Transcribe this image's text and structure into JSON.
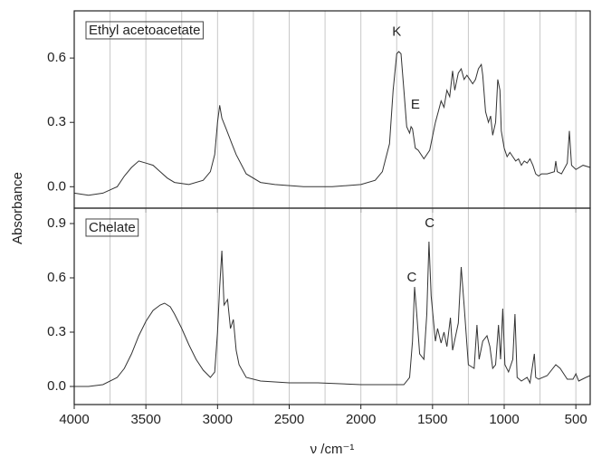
{
  "chart_data": [
    {
      "type": "line",
      "ylabel": "Absorbance",
      "x": [
        4000,
        3900,
        3800,
        3700,
        3650,
        3600,
        3550,
        3500,
        3450,
        3400,
        3350,
        3300,
        3200,
        3100,
        3050,
        3020,
        3000,
        2985,
        2970,
        2940,
        2900,
        2870,
        2800,
        2700,
        2600,
        2400,
        2200,
        2000,
        1900,
        1850,
        1800,
        1775,
        1750,
        1735,
        1720,
        1700,
        1680,
        1660,
        1650,
        1640,
        1620,
        1600,
        1560,
        1520,
        1480,
        1460,
        1440,
        1420,
        1400,
        1380,
        1360,
        1345,
        1320,
        1300,
        1280,
        1260,
        1240,
        1220,
        1200,
        1180,
        1160,
        1150,
        1130,
        1110,
        1095,
        1080,
        1060,
        1045,
        1030,
        1020,
        1000,
        980,
        960,
        940,
        920,
        900,
        880,
        860,
        840,
        820,
        800,
        780,
        760,
        740,
        700,
        650,
        640,
        630,
        600,
        560,
        545,
        530,
        500,
        450,
        400
      ],
      "series": [
        {
          "name": "Ethyl acetoacetate",
          "color": "#333333",
          "values": [
            -0.03,
            -0.04,
            -0.03,
            0.0,
            0.05,
            0.09,
            0.12,
            0.11,
            0.1,
            0.07,
            0.04,
            0.02,
            0.01,
            0.03,
            0.07,
            0.15,
            0.3,
            0.38,
            0.32,
            0.27,
            0.2,
            0.15,
            0.06,
            0.02,
            0.01,
            0.0,
            0.0,
            0.01,
            0.03,
            0.07,
            0.2,
            0.45,
            0.62,
            0.63,
            0.62,
            0.45,
            0.28,
            0.25,
            0.28,
            0.27,
            0.18,
            0.17,
            0.13,
            0.17,
            0.3,
            0.35,
            0.4,
            0.37,
            0.45,
            0.42,
            0.54,
            0.45,
            0.53,
            0.55,
            0.5,
            0.52,
            0.5,
            0.48,
            0.5,
            0.55,
            0.57,
            0.52,
            0.35,
            0.3,
            0.33,
            0.24,
            0.3,
            0.5,
            0.45,
            0.26,
            0.18,
            0.14,
            0.16,
            0.14,
            0.12,
            0.13,
            0.1,
            0.12,
            0.11,
            0.13,
            0.1,
            0.06,
            0.05,
            0.06,
            0.06,
            0.07,
            0.12,
            0.07,
            0.06,
            0.11,
            0.26,
            0.1,
            0.08,
            0.1,
            0.09
          ]
        }
      ],
      "ylim": [
        -0.1,
        0.82
      ],
      "yticks": [
        {
          "value": 0,
          "label": "0.0"
        },
        0.3,
        0.6
      ],
      "annotations": [
        {
          "text": "K",
          "x": 1750,
          "y": 0.72
        },
        {
          "text": "E",
          "x": 1620,
          "y": 0.38
        }
      ]
    },
    {
      "type": "line",
      "xlabel": "ν /cm⁻¹",
      "x": [
        4000,
        3900,
        3800,
        3700,
        3650,
        3600,
        3550,
        3500,
        3450,
        3400,
        3370,
        3330,
        3300,
        3250,
        3200,
        3150,
        3100,
        3050,
        3020,
        3000,
        2985,
        2970,
        2955,
        2930,
        2910,
        2890,
        2870,
        2850,
        2800,
        2700,
        2500,
        2300,
        2000,
        1800,
        1700,
        1660,
        1640,
        1625,
        1610,
        1590,
        1560,
        1540,
        1525,
        1510,
        1480,
        1465,
        1440,
        1420,
        1400,
        1375,
        1360,
        1320,
        1300,
        1280,
        1250,
        1210,
        1190,
        1175,
        1150,
        1120,
        1100,
        1080,
        1060,
        1040,
        1025,
        1010,
        995,
        970,
        940,
        925,
        910,
        880,
        840,
        820,
        790,
        780,
        760,
        700,
        640,
        610,
        560,
        520,
        500,
        480,
        430,
        400
      ],
      "series": [
        {
          "name": "Chelate",
          "color": "#333333",
          "values": [
            0.0,
            0.0,
            0.01,
            0.05,
            0.1,
            0.18,
            0.28,
            0.36,
            0.42,
            0.45,
            0.46,
            0.44,
            0.4,
            0.32,
            0.23,
            0.15,
            0.09,
            0.05,
            0.08,
            0.3,
            0.55,
            0.75,
            0.45,
            0.48,
            0.32,
            0.37,
            0.2,
            0.12,
            0.05,
            0.03,
            0.02,
            0.02,
            0.01,
            0.01,
            0.01,
            0.05,
            0.25,
            0.55,
            0.4,
            0.18,
            0.15,
            0.4,
            0.8,
            0.5,
            0.25,
            0.32,
            0.24,
            0.3,
            0.22,
            0.38,
            0.2,
            0.35,
            0.66,
            0.45,
            0.12,
            0.1,
            0.34,
            0.15,
            0.25,
            0.28,
            0.22,
            0.1,
            0.12,
            0.34,
            0.15,
            0.43,
            0.12,
            0.08,
            0.15,
            0.4,
            0.05,
            0.03,
            0.05,
            0.02,
            0.18,
            0.05,
            0.04,
            0.06,
            0.12,
            0.1,
            0.04,
            0.04,
            0.07,
            0.03,
            0.05,
            0.06
          ]
        }
      ],
      "ylim": [
        -0.1,
        0.985
      ],
      "yticks": [
        {
          "value": 0,
          "label": "0.0"
        },
        0.3,
        0.6,
        0.9
      ],
      "xlim": [
        4000,
        400
      ],
      "xticks": [
        4000,
        3500,
        3000,
        2500,
        2000,
        1500,
        1000,
        500
      ],
      "xminor": [
        3750,
        3250,
        2750,
        2250,
        1750,
        1250,
        750
      ],
      "grid": true,
      "annotations": [
        {
          "text": "C",
          "x": 1520,
          "y": 0.9
        },
        {
          "text": "C",
          "x": 1645,
          "y": 0.6
        }
      ]
    }
  ]
}
